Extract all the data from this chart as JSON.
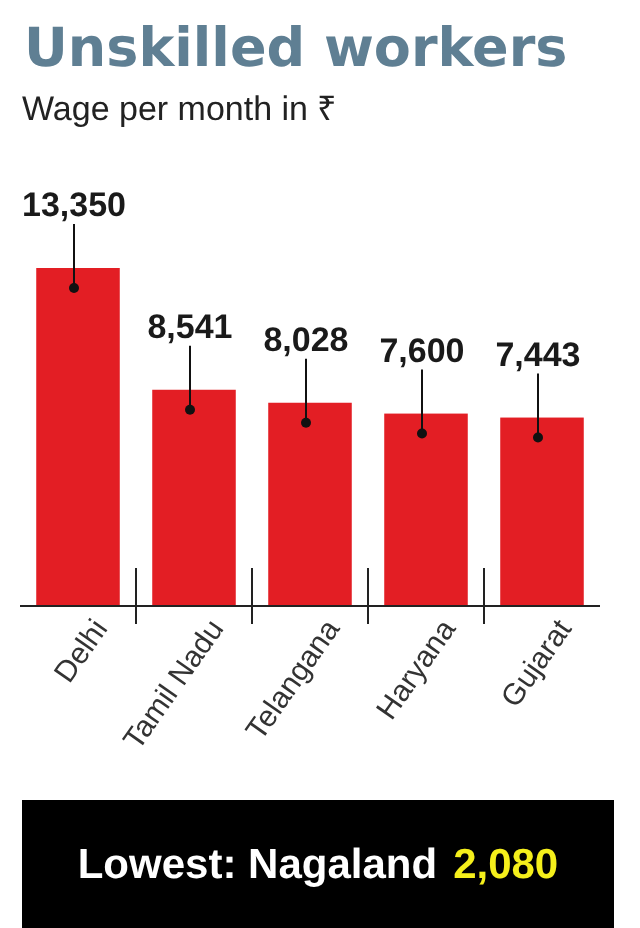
{
  "chart_data": {
    "type": "bar",
    "title": "Unskilled workers",
    "subtitle": "Wage per month in ₹",
    "categories": [
      "Delhi",
      "Tamil Nadu",
      "Telangana",
      "Haryana",
      "Gujarat"
    ],
    "values": [
      13350,
      8541,
      8028,
      7600,
      7443
    ],
    "value_labels": [
      "13,350",
      "8,541",
      "8,028",
      "7,600",
      "7,443"
    ],
    "color": "#e31e24",
    "annotations": [
      "Lowest: Nagaland",
      "2,080"
    ]
  }
}
